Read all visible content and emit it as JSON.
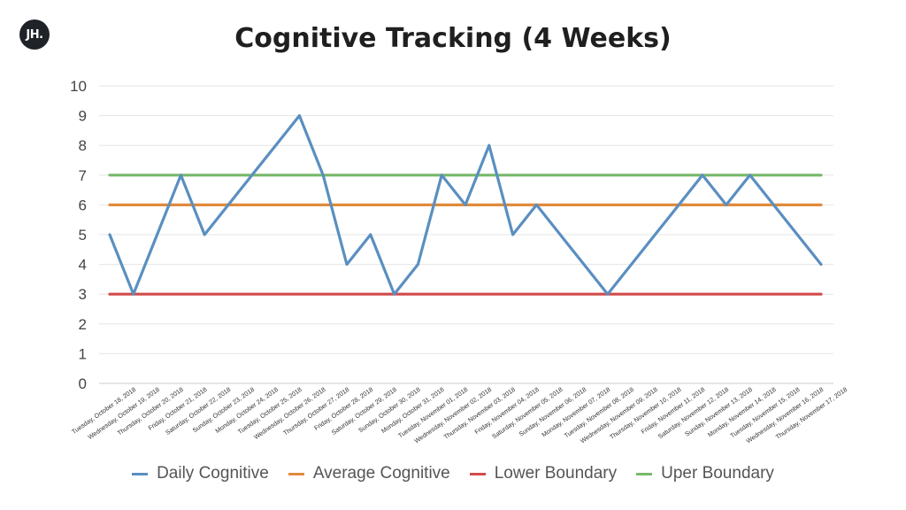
{
  "logo": {
    "text": "JH."
  },
  "chart_data": {
    "type": "line",
    "title": "Cognitive Tracking (4 Weeks)",
    "xlabel": "",
    "ylabel": "",
    "ylim": [
      0,
      10
    ],
    "yticks": [
      "0",
      "1",
      "2",
      "3",
      "4",
      "5",
      "6",
      "7",
      "8",
      "9",
      "10"
    ],
    "grid": true,
    "legend_position": "bottom",
    "categories": [
      "Tuesday, October 18, 2018",
      "Wednesday, October 19, 2018",
      "Thursday, October 20, 2018",
      "Friday, October 21, 2018",
      "Saturday, October 22, 2018",
      "Sunday, October 23, 2018",
      "Monday, October 24, 2018",
      "Tuesday, October 25, 2018",
      "Wednesday, October 26, 2018",
      "Thursday, October 27, 2018",
      "Friday, October 28, 2018",
      "Saturday, October 29, 2018",
      "Sunday, October 30, 2018",
      "Monday, October 31, 2018",
      "Tuesday, November 01, 2018",
      "Wednesday, November 02, 2018",
      "Thursday, November 03, 2018",
      "Friday, November 04, 2018",
      "Saturday, November 05, 2018",
      "Sunday, November 06, 2018",
      "Monday, November 07, 2018",
      "Tuesday, November 08, 2018",
      "Wednesday, November 09, 2018",
      "Thursday, November 10, 2018",
      "Friday, November 11, 2018",
      "Saturday, November 12, 2018",
      "Sunday, November 13, 2018",
      "Monday, November 14, 2018",
      "Tuesday, November 15, 2018",
      "Wednesday, November 16, 2018",
      "Thursday, November 17, 2018"
    ],
    "series": [
      {
        "name": "Daily Cognitive",
        "color": "#5a8fc0",
        "values": [
          5,
          3,
          5,
          7,
          5,
          6,
          7,
          8,
          9,
          7,
          4,
          5,
          3,
          4,
          7,
          6,
          8,
          5,
          6,
          5,
          4,
          3,
          4,
          5,
          6,
          7,
          6,
          7,
          6,
          5,
          4
        ]
      },
      {
        "name": "Average Cognitive",
        "color": "#e08a3c",
        "values": [
          6,
          6,
          6,
          6,
          6,
          6,
          6,
          6,
          6,
          6,
          6,
          6,
          6,
          6,
          6,
          6,
          6,
          6,
          6,
          6,
          6,
          6,
          6,
          6,
          6,
          6,
          6,
          6,
          6,
          6,
          6
        ]
      },
      {
        "name": "Lower Boundary",
        "color": "#d24b4b",
        "values": [
          3,
          3,
          3,
          3,
          3,
          3,
          3,
          3,
          3,
          3,
          3,
          3,
          3,
          3,
          3,
          3,
          3,
          3,
          3,
          3,
          3,
          3,
          3,
          3,
          3,
          3,
          3,
          3,
          3,
          3,
          3
        ]
      },
      {
        "name": "Uper Boundary",
        "color": "#77b86a",
        "values": [
          7,
          7,
          7,
          7,
          7,
          7,
          7,
          7,
          7,
          7,
          7,
          7,
          7,
          7,
          7,
          7,
          7,
          7,
          7,
          7,
          7,
          7,
          7,
          7,
          7,
          7,
          7,
          7,
          7,
          7,
          7
        ]
      }
    ]
  }
}
